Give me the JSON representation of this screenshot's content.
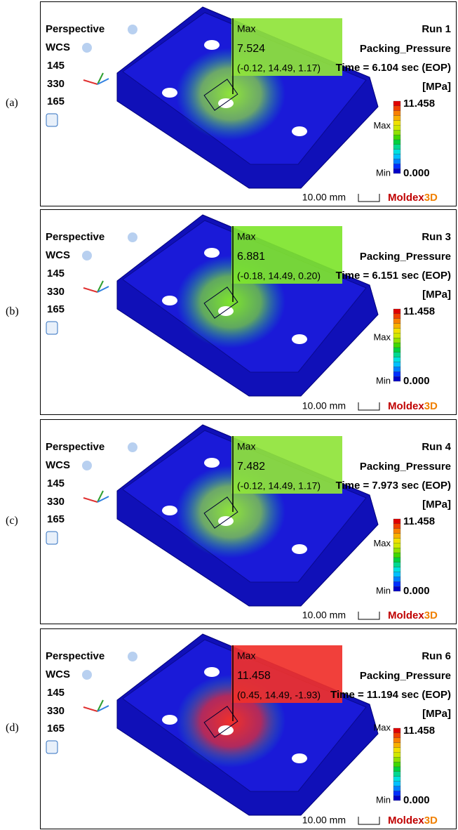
{
  "panels": [
    {
      "label": "(a)",
      "view": "Perspective",
      "cs": "WCS",
      "view_coords": [
        "145",
        "330",
        "165"
      ],
      "max_title": "Max",
      "max_value": "7.524",
      "max_coords": "(-0.12, 14.49, 1.17)",
      "run": "Run 1",
      "result": "Packing_Pressure",
      "time": "Time = 6.104 sec (EOP)",
      "unit": "[MPa]",
      "legend_max": "11.458",
      "legend_min": "0.000",
      "legend_max_label": "Max",
      "legend_min_label": "Min",
      "scale": "10.00 mm",
      "brand": "Moldex",
      "brand_suffix": "3D",
      "color": "#8fe43a"
    },
    {
      "label": "(b)",
      "view": "Perspective",
      "cs": "WCS",
      "view_coords": [
        "145",
        "330",
        "165"
      ],
      "max_title": "Max",
      "max_value": "6.881",
      "max_coords": "(-0.18, 14.49, 0.20)",
      "run": "Run 3",
      "result": "Packing_Pressure",
      "time": "Time = 6.151 sec (EOP)",
      "unit": "[MPa]",
      "legend_max": "11.458",
      "legend_min": "0.000",
      "legend_max_label": "Max",
      "legend_min_label": "Min",
      "scale": "10.00 mm",
      "brand": "Moldex",
      "brand_suffix": "3D",
      "color": "#7ee52c"
    },
    {
      "label": "(c)",
      "view": "Perspective",
      "cs": "WCS",
      "view_coords": [
        "145",
        "330",
        "165"
      ],
      "max_title": "Max",
      "max_value": "7.482",
      "max_coords": "(-0.12, 14.49, 1.17)",
      "run": "Run 4",
      "result": "Packing_Pressure",
      "time": "Time = 7.973 sec (EOP)",
      "unit": "[MPa]",
      "legend_max": "11.458",
      "legend_min": "0.000",
      "legend_max_label": "Max",
      "legend_min_label": "Min",
      "scale": "10.00 mm",
      "brand": "Moldex",
      "brand_suffix": "3D",
      "color": "#8fe43a"
    },
    {
      "label": "(d)",
      "view": "Perspective",
      "cs": "WCS",
      "view_coords": [
        "145",
        "330",
        "165"
      ],
      "max_title": "Max",
      "max_value": "11.458",
      "max_coords": "(0.45, 14.49, -1.93)",
      "run": "Run 6",
      "result": "Packing_Pressure",
      "time": "Time = 11.194 sec (EOP)",
      "unit": "[MPa]",
      "legend_max": "11.458",
      "legend_min": "0.000",
      "legend_max_label": "Max",
      "legend_min_label": "Min",
      "scale": "10.00 mm",
      "brand": "Moldex",
      "brand_suffix": "3D",
      "color": "#f0302a"
    }
  ]
}
